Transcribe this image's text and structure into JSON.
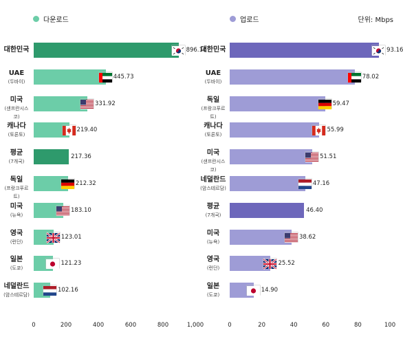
{
  "legend": {
    "download": "다운로드",
    "upload": "업로드",
    "unit": "단위: Mbps"
  },
  "colors": {
    "download_bar": "#6ccda8",
    "download_highlight": "#2e9a6c",
    "upload_bar": "#9e9cd6",
    "upload_highlight": "#6d67bb"
  },
  "chart_data": [
    {
      "type": "bar",
      "orientation": "horizontal",
      "series": [
        {
          "name": "다운로드",
          "values": [
            896.1,
            445.73,
            331.92,
            219.4,
            217.36,
            212.32,
            183.1,
            123.01,
            121.23,
            102.16
          ]
        }
      ],
      "categories": [
        {
          "label": "대한민국",
          "sub": "",
          "flag": "korea",
          "value": 896.1,
          "value_label": "896.10",
          "highlight": true
        },
        {
          "label": "UAE",
          "sub": "(두바이)",
          "flag": "uae",
          "value": 445.73,
          "value_label": "445.73",
          "highlight": false
        },
        {
          "label": "미국",
          "sub": "(샌프란시스코)",
          "flag": "usa",
          "value": 331.92,
          "value_label": "331.92",
          "highlight": false
        },
        {
          "label": "캐나다",
          "sub": "(토론토)",
          "flag": "canada",
          "value": 219.4,
          "value_label": "219.40",
          "highlight": false
        },
        {
          "label": "평균",
          "sub": "(7개국)",
          "flag": "",
          "value": 217.36,
          "value_label": "217.36",
          "highlight": true
        },
        {
          "label": "독일",
          "sub": "(프랑크푸르트)",
          "flag": "germany",
          "value": 212.32,
          "value_label": "212.32",
          "highlight": false
        },
        {
          "label": "미국",
          "sub": "(뉴욕)",
          "flag": "usa",
          "value": 183.1,
          "value_label": "183.10",
          "highlight": false
        },
        {
          "label": "영국",
          "sub": "(런던)",
          "flag": "uk",
          "value": 123.01,
          "value_label": "123.01",
          "highlight": false
        },
        {
          "label": "일본",
          "sub": "(도쿄)",
          "flag": "japan",
          "value": 121.23,
          "value_label": "121.23",
          "highlight": false
        },
        {
          "label": "네덜란드",
          "sub": "(암스테르담)",
          "flag": "netherlands",
          "value": 102.16,
          "value_label": "102.16",
          "highlight": false
        }
      ],
      "xlim": [
        0,
        1000
      ],
      "xticks": [
        "0",
        "200",
        "400",
        "600",
        "800",
        "1,000"
      ],
      "grid": false,
      "legend": "top-left"
    },
    {
      "type": "bar",
      "orientation": "horizontal",
      "series": [
        {
          "name": "업로드",
          "values": [
            93.16,
            78.02,
            59.47,
            55.99,
            51.51,
            47.16,
            46.4,
            38.62,
            25.52,
            14.9
          ]
        }
      ],
      "categories": [
        {
          "label": "대한민국",
          "sub": "",
          "flag": "korea",
          "value": 93.16,
          "value_label": "93.16",
          "highlight": true
        },
        {
          "label": "UAE",
          "sub": "(두바이)",
          "flag": "uae",
          "value": 78.02,
          "value_label": "78.02",
          "highlight": false
        },
        {
          "label": "독일",
          "sub": "(프랑크푸르트)",
          "flag": "germany",
          "value": 59.47,
          "value_label": "59.47",
          "highlight": false
        },
        {
          "label": "캐나다",
          "sub": "(토론토)",
          "flag": "canada",
          "value": 55.99,
          "value_label": "55.99",
          "highlight": false
        },
        {
          "label": "미국",
          "sub": "(샌프란시스코)",
          "flag": "usa",
          "value": 51.51,
          "value_label": "51.51",
          "highlight": false
        },
        {
          "label": "네덜란드",
          "sub": "(암스테르담)",
          "flag": "netherlands",
          "value": 47.16,
          "value_label": "47.16",
          "highlight": false
        },
        {
          "label": "평균",
          "sub": "(7개국)",
          "flag": "",
          "value": 46.4,
          "value_label": "46.40",
          "highlight": true
        },
        {
          "label": "미국",
          "sub": "(뉴욕)",
          "flag": "usa",
          "value": 38.62,
          "value_label": "38.62",
          "highlight": false
        },
        {
          "label": "영국",
          "sub": "(런던)",
          "flag": "uk",
          "value": 25.52,
          "value_label": "25.52",
          "highlight": false
        },
        {
          "label": "일본",
          "sub": "(도쿄)",
          "flag": "japan",
          "value": 14.9,
          "value_label": "14.90",
          "highlight": false
        }
      ],
      "xlim": [
        0,
        100
      ],
      "xticks": [
        "0",
        "20",
        "40",
        "60",
        "80",
        "100"
      ],
      "grid": false,
      "legend": "top-left"
    }
  ]
}
